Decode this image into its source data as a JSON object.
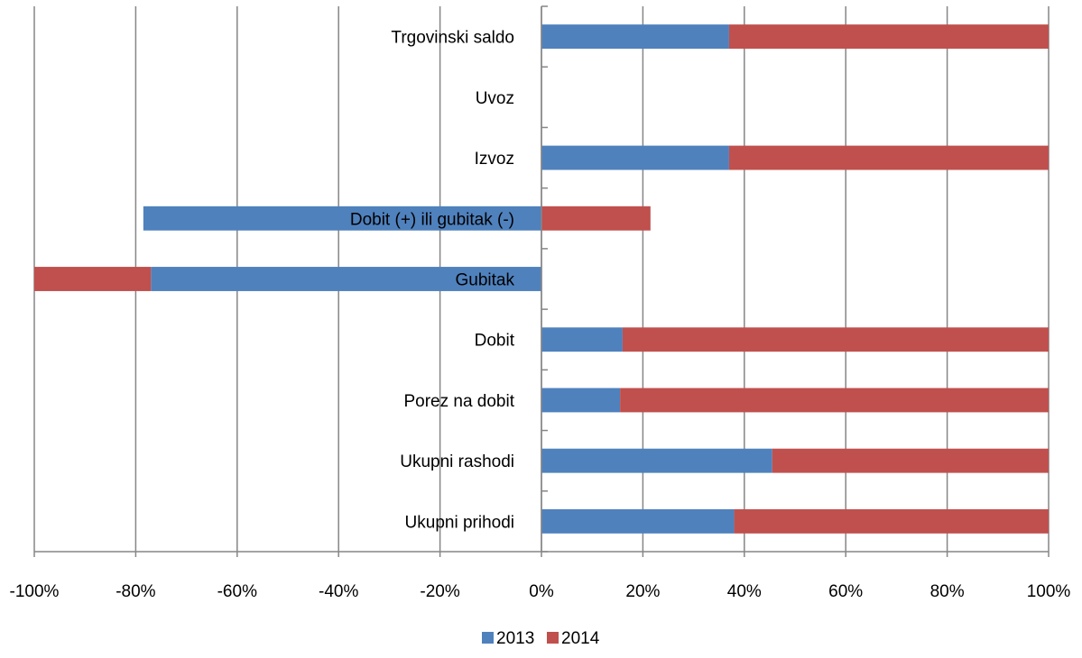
{
  "chart_data": {
    "type": "bar",
    "orientation": "horizontal",
    "stacked": "percent",
    "categories": [
      "Trgovinski saldo",
      "Uvoz",
      "Izvoz",
      "Dobit (+) ili gubitak (-)",
      "Gubitak",
      "Dobit",
      "Porez na dobit",
      "Ukupni rashodi",
      "Ukupni prihodi"
    ],
    "series": [
      {
        "name": "2013",
        "color": "#4F81BD",
        "values": [
          37,
          0,
          37,
          -78.5,
          -77,
          16,
          15.5,
          45.5,
          38
        ]
      },
      {
        "name": "2014",
        "color": "#C0504D",
        "values": [
          63,
          0,
          63,
          21.5,
          -23,
          84,
          84.5,
          54.5,
          62
        ]
      }
    ],
    "xlim": [
      -100,
      100
    ],
    "xticks": [
      "-100%",
      "-80%",
      "-60%",
      "-40%",
      "-20%",
      "0%",
      "20%",
      "40%",
      "60%",
      "80%",
      "100%"
    ],
    "grid": true,
    "legend": "bottom"
  }
}
